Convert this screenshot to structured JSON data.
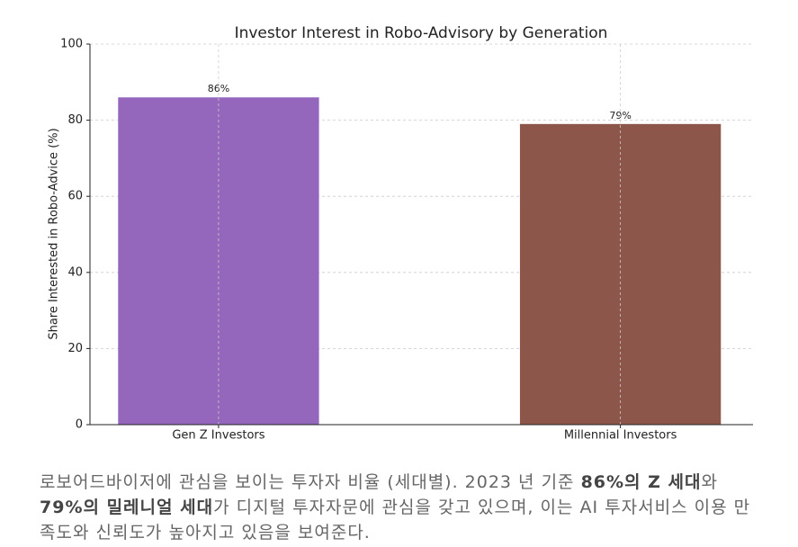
{
  "chart_data": {
    "type": "bar",
    "title": "Investor Interest in Robo-Advisory by Generation",
    "y_label": "Share Interested in Robo-Advice (%)",
    "categories": [
      "Gen Z Investors",
      "Millennial Investors"
    ],
    "values": [
      86,
      79
    ],
    "value_labels": [
      "86%",
      "79%"
    ],
    "colors": [
      "#9467bd",
      "#8c564b"
    ],
    "ylim": [
      0,
      100
    ],
    "yticks": [
      0,
      20,
      40,
      60,
      80,
      100
    ],
    "grid": true
  },
  "caption": [
    {
      "text": "로보어드바이저에 관심을 보이는 투자자 비율 (세대별). 2023 년 기준 ",
      "bold": false
    },
    {
      "text": "86%의 Z 세대",
      "bold": true
    },
    {
      "text": "와 ",
      "bold": false
    },
    {
      "text": "79%의 밀레니얼 세대",
      "bold": true
    },
    {
      "text": "가 디지털 투자자문에 관심을 갖고 있으며, 이는 AI 투자서비스 이용 만족도와 신뢰도가 높아지고 있음을 보여준다.",
      "bold": false
    }
  ]
}
